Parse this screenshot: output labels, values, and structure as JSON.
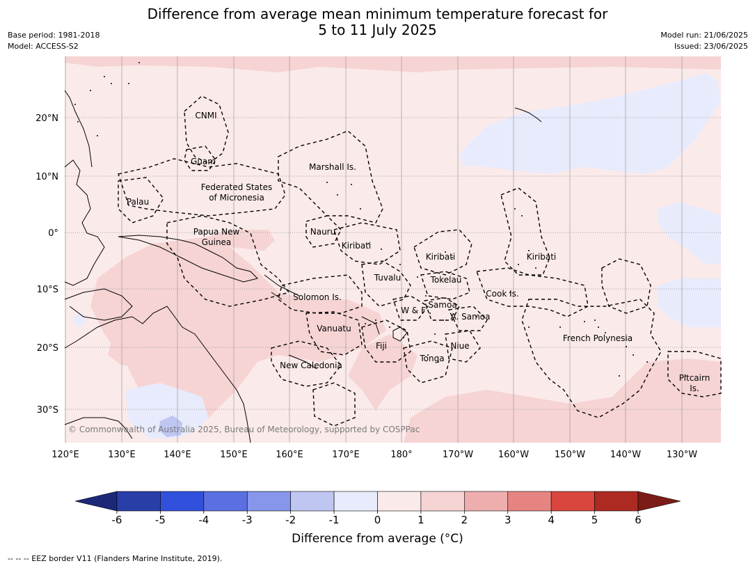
{
  "header": {
    "title_line1": "Difference from average mean minimum temperature forecast for",
    "title_line2": "5 to 11 July 2025",
    "base_period": "Base period: 1981-2018",
    "model": "Model: ACCESS-S2",
    "model_run": "Model run: 21/06/2025",
    "issued": "Issued: 23/06/2025"
  },
  "map": {
    "copyright": "© Commonwealth of Australia 2025, Bureau of Meteorology, supported by COSPPac",
    "lat_labels": [
      "20°N",
      "10°N",
      "0°",
      "10°S",
      "20°S",
      "30°S"
    ],
    "lon_labels": [
      "120°E",
      "130°E",
      "140°E",
      "150°E",
      "160°E",
      "170°E",
      "180°",
      "170°W",
      "160°W",
      "150°W",
      "140°W",
      "130°W"
    ],
    "places": [
      "CNMI",
      "Guam",
      "Marshall Is.",
      "Federated States",
      "of Micronesia",
      "Palau",
      "Papua New",
      "Guinea",
      "Nauru",
      "Kiribati",
      "Kiribati",
      "Kiribati",
      "Tuvalu",
      "Tokelau",
      "Cook Is.",
      "Solomon Is.",
      "W & F",
      "Samoa",
      "A. Samoa",
      "Vanuatu",
      "Fiji",
      "Niue",
      "Tonga",
      "French Polynesia",
      "New Caledonia",
      "Pitcairn",
      "Is."
    ]
  },
  "colorbar": {
    "ticks": [
      "-6",
      "-5",
      "-4",
      "-3",
      "-2",
      "-1",
      "0",
      "1",
      "2",
      "3",
      "4",
      "5",
      "6"
    ],
    "colors": [
      "#2a3ea8",
      "#3150dc",
      "#5b6fe0",
      "#8795ea",
      "#bfc6f2",
      "#e8ebfb",
      "#fbeaea",
      "#f6d4d4",
      "#eeaeae",
      "#e58480",
      "#d9463e",
      "#ad2a22"
    ],
    "low_extend_color": "#1c2878",
    "high_extend_color": "#7b1c18",
    "title": "Difference from average (°C)"
  },
  "footnote": "--  --  -- EEZ border V11 (Flanders Marine Institute, 2019)."
}
